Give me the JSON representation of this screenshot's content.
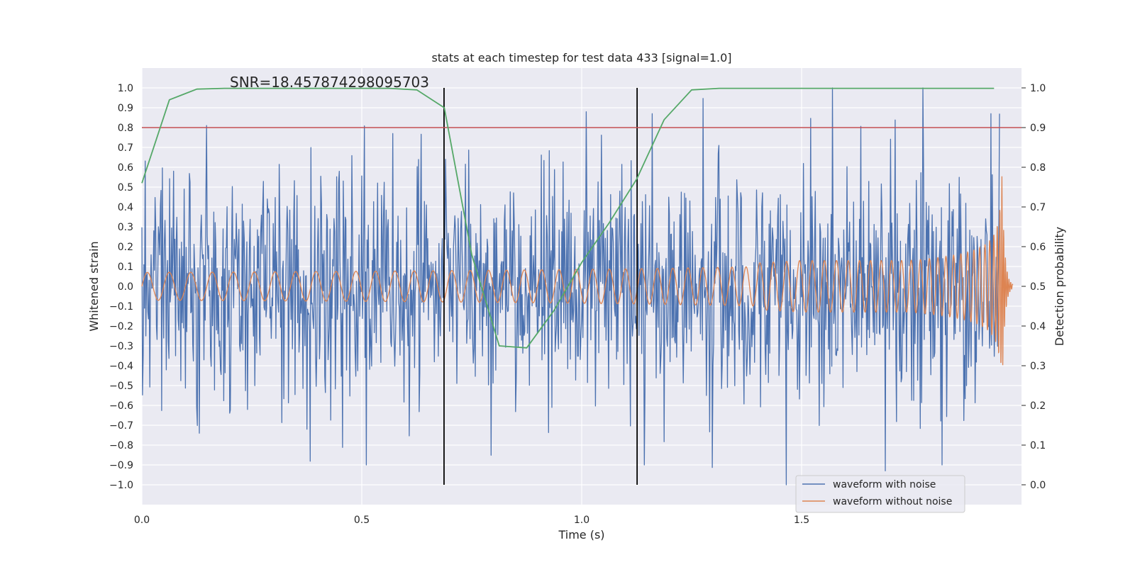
{
  "chart_data": {
    "type": "line",
    "title": "stats at each timestep for test data 433 [signal=1.0]",
    "xlabel": "Time (s)",
    "ylabel": "Whitened strain",
    "y2label": "Detection probability",
    "xlim": [
      0.0,
      2.0
    ],
    "ylim": [
      -1.1,
      1.1
    ],
    "y2lim": [
      -0.05,
      1.05
    ],
    "grid": true,
    "legend_position": "lower-right",
    "x_ticks": [
      "0.0",
      "0.5",
      "1.0",
      "1.5"
    ],
    "x_tick_values": [
      0.0,
      0.5,
      1.0,
      1.5
    ],
    "y_ticks": [
      "1.0",
      "0.9",
      "0.8",
      "0.7",
      "0.6",
      "0.5",
      "0.4",
      "0.3",
      "0.2",
      "0.1",
      "0.0",
      "−0.1",
      "−0.2",
      "−0.3",
      "−0.4",
      "−0.5",
      "−0.6",
      "−0.7",
      "−0.8",
      "−0.9",
      "−1.0"
    ],
    "y_tick_values": [
      1.0,
      0.9,
      0.8,
      0.7,
      0.6,
      0.5,
      0.4,
      0.3,
      0.2,
      0.1,
      0.0,
      -0.1,
      -0.2,
      -0.3,
      -0.4,
      -0.5,
      -0.6,
      -0.7,
      -0.8,
      -0.9,
      -1.0
    ],
    "y2_ticks": [
      "1.0",
      "0.9",
      "0.8",
      "0.7",
      "0.6",
      "0.5",
      "0.4",
      "0.3",
      "0.2",
      "0.1",
      "0.0"
    ],
    "y2_tick_values": [
      1.0,
      0.9,
      0.8,
      0.7,
      0.6,
      0.5,
      0.4,
      0.3,
      0.2,
      0.1,
      0.0
    ],
    "annotation": "SNR=18.457874298095703",
    "annotation_x": 0.2,
    "annotation_y": 1.02,
    "threshold_line": {
      "axis": "right",
      "value": 0.9,
      "color": "#c44e52"
    },
    "vertical_lines": [
      0.687,
      1.126
    ],
    "vertical_line_range": [
      -1.0,
      1.0
    ],
    "series": [
      {
        "name": "waveform with noise",
        "axis": "left",
        "color": "#4c72b0",
        "x_start": 0.0,
        "x_end": 1.95,
        "n_points": 1300,
        "amplitude_std": 0.28,
        "extremes": [
          [
            0.147,
            0.81
          ],
          [
            0.13,
            -0.74
          ],
          [
            0.375,
            -0.72
          ],
          [
            0.51,
            -0.9
          ],
          [
            0.57,
            0.77
          ],
          [
            0.69,
            0.64
          ],
          [
            1.01,
            0.88
          ],
          [
            1.16,
            0.87
          ],
          [
            1.143,
            -0.9
          ],
          [
            1.465,
            -1.0
          ],
          [
            1.57,
            1.0
          ],
          [
            1.69,
            -0.93
          ],
          [
            1.82,
            -0.9
          ],
          [
            1.93,
            0.87
          ],
          [
            1.95,
            0.87
          ]
        ]
      },
      {
        "name": "waveform without noise",
        "axis": "left",
        "color": "#dd8452",
        "x_start": 0.0,
        "x_end": 1.98,
        "n_points": 5000,
        "amplitude_early": 0.07,
        "amplitude_1_5": 0.13,
        "peak_amplitude": 0.6,
        "peak_time": 1.955,
        "start_frequency": 20,
        "description": "chirp waveform"
      },
      {
        "name": "",
        "axis": "right",
        "color": "#55a868",
        "x": [
          0.0,
          0.0625,
          0.125,
          0.1875,
          0.25,
          0.3125,
          0.375,
          0.4375,
          0.5,
          0.5625,
          0.625,
          0.6875,
          0.75,
          0.8125,
          0.875,
          0.9375,
          1.0,
          1.0625,
          1.125,
          1.1875,
          1.25,
          1.3125,
          1.375,
          1.4375,
          1.5,
          1.5625,
          1.625,
          1.6875,
          1.75,
          1.8125,
          1.875,
          1.9375
        ],
        "values": [
          0.76,
          0.97,
          0.997,
          0.999,
          0.999,
          0.999,
          0.999,
          0.999,
          0.999,
          0.999,
          0.995,
          0.95,
          0.58,
          0.35,
          0.345,
          0.44,
          0.56,
          0.66,
          0.77,
          0.92,
          0.995,
          0.999,
          0.999,
          0.999,
          0.999,
          0.999,
          0.999,
          0.999,
          0.999,
          0.999,
          0.999,
          0.999
        ]
      }
    ],
    "legend": [
      {
        "label": "waveform with noise",
        "color": "#4c72b0"
      },
      {
        "label": "waveform without noise",
        "color": "#dd8452"
      }
    ]
  }
}
